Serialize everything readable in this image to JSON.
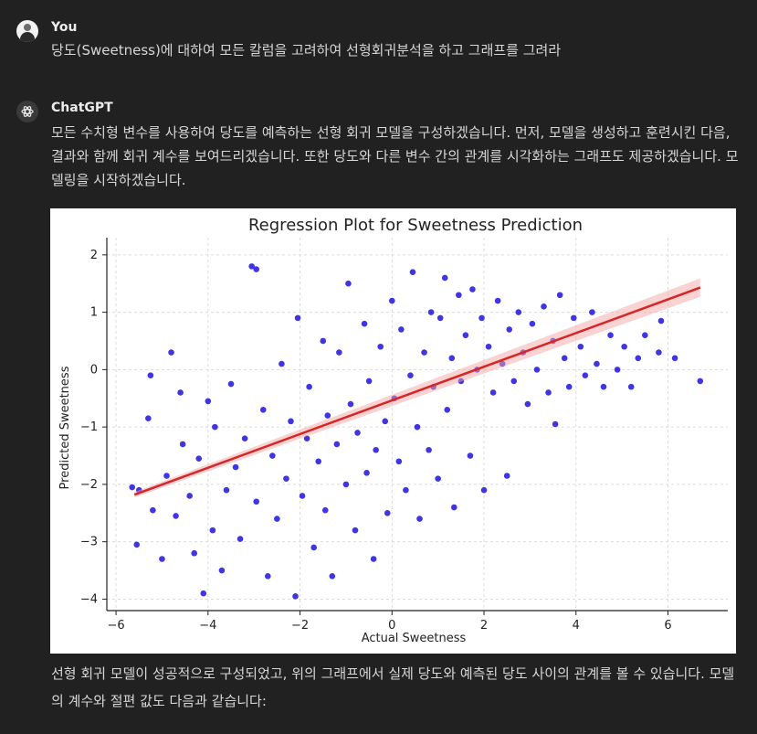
{
  "user": {
    "name": "You",
    "message": "당도(Sweetness)에 대하여 모든 칼럼을 고려하여 선형회귀분석을 하고 그래프를 그려라"
  },
  "assistant": {
    "name": "ChatGPT",
    "message_1": "모든 수치형 변수를 사용하여 당도를 예측하는 선형 회귀 모델을 구성하겠습니다. 먼저, 모델을 생성하고 훈련시킨 다음, 결과와 함께 회귀 계수를 보여드리겠습니다. 또한 당도와 다른 변수 간의 관계를 시각화하는 그래프도 제공하겠습니다. 모델링을 시작하겠습니다.",
    "message_2": "선형 회귀 모델이 성공적으로 구성되었고, 위의 그래프에서 실제 당도와 예측된 당도 사이의 관계를 볼 수 있습니다. 모델의 계수와 절편 값도 다음과 같습니다:"
  },
  "icons": {
    "user_avatar": "user-avatar-icon",
    "assistant_avatar": "openai-logo-icon"
  },
  "chart_data": {
    "type": "scatter",
    "title": "Regression Plot for Sweetness Prediction",
    "xlabel": "Actual Sweetness",
    "ylabel": "Predicted Sweetness",
    "xlim": [
      -6.2,
      7.3
    ],
    "ylim": [
      -4.2,
      2.3
    ],
    "xticks": [
      -6,
      -4,
      -2,
      0,
      2,
      4,
      6
    ],
    "yticks": [
      -4,
      -3,
      -2,
      -1,
      0,
      1,
      2
    ],
    "grid": true,
    "point_color": "#2b1fe0",
    "line_color": "#d62728",
    "regression_line": {
      "x": [
        -5.6,
        6.7
      ],
      "y": [
        -2.18,
        1.43
      ]
    },
    "points": [
      [
        -5.65,
        -2.05
      ],
      [
        -5.55,
        -3.05
      ],
      [
        -5.5,
        -2.1
      ],
      [
        -5.3,
        -0.85
      ],
      [
        -5.25,
        -0.1
      ],
      [
        -5.2,
        -2.45
      ],
      [
        -5.0,
        -3.3
      ],
      [
        -4.9,
        -1.85
      ],
      [
        -4.8,
        0.3
      ],
      [
        -4.7,
        -2.55
      ],
      [
        -4.6,
        -0.4
      ],
      [
        -4.55,
        -1.3
      ],
      [
        -4.4,
        -2.2
      ],
      [
        -4.3,
        -3.2
      ],
      [
        -4.2,
        -1.55
      ],
      [
        -4.1,
        -3.9
      ],
      [
        -4.0,
        -0.55
      ],
      [
        -3.9,
        -2.8
      ],
      [
        -3.85,
        -1.0
      ],
      [
        -3.7,
        -3.5
      ],
      [
        -3.6,
        -2.1
      ],
      [
        -3.5,
        -0.25
      ],
      [
        -3.4,
        -1.7
      ],
      [
        -3.3,
        -2.95
      ],
      [
        -3.2,
        -1.2
      ],
      [
        -3.05,
        1.8
      ],
      [
        -2.95,
        1.75
      ],
      [
        -2.95,
        -2.3
      ],
      [
        -2.8,
        -0.7
      ],
      [
        -2.7,
        -3.6
      ],
      [
        -2.6,
        -1.5
      ],
      [
        -2.5,
        -2.6
      ],
      [
        -2.4,
        0.1
      ],
      [
        -2.3,
        -1.9
      ],
      [
        -2.2,
        -0.9
      ],
      [
        -2.1,
        -3.95
      ],
      [
        -2.05,
        0.9
      ],
      [
        -1.95,
        -2.2
      ],
      [
        -1.85,
        -1.2
      ],
      [
        -1.8,
        -0.3
      ],
      [
        -1.7,
        -3.1
      ],
      [
        -1.6,
        -1.6
      ],
      [
        -1.5,
        0.5
      ],
      [
        -1.45,
        -2.45
      ],
      [
        -1.4,
        -0.8
      ],
      [
        -1.3,
        -3.6
      ],
      [
        -1.2,
        -1.3
      ],
      [
        -1.15,
        0.3
      ],
      [
        -1.0,
        -2.0
      ],
      [
        -0.95,
        1.5
      ],
      [
        -0.9,
        -0.6
      ],
      [
        -0.8,
        -2.8
      ],
      [
        -0.75,
        -1.1
      ],
      [
        -0.6,
        0.8
      ],
      [
        -0.55,
        -1.8
      ],
      [
        -0.5,
        -0.2
      ],
      [
        -0.4,
        -3.3
      ],
      [
        -0.35,
        -1.4
      ],
      [
        -0.25,
        0.4
      ],
      [
        -0.15,
        -0.9
      ],
      [
        -0.1,
        -2.5
      ],
      [
        0.0,
        1.2
      ],
      [
        0.05,
        -0.5
      ],
      [
        0.15,
        -1.6
      ],
      [
        0.2,
        0.7
      ],
      [
        0.3,
        -2.1
      ],
      [
        0.4,
        -0.1
      ],
      [
        0.45,
        1.7
      ],
      [
        0.55,
        -1.0
      ],
      [
        0.6,
        -2.6
      ],
      [
        0.7,
        0.3
      ],
      [
        0.8,
        -1.4
      ],
      [
        0.85,
        1.0
      ],
      [
        0.9,
        -0.3
      ],
      [
        1.0,
        -1.9
      ],
      [
        1.05,
        0.9
      ],
      [
        1.15,
        1.6
      ],
      [
        1.2,
        -0.7
      ],
      [
        1.3,
        0.2
      ],
      [
        1.35,
        -2.4
      ],
      [
        1.45,
        1.3
      ],
      [
        1.5,
        -0.2
      ],
      [
        1.6,
        0.6
      ],
      [
        1.7,
        -1.5
      ],
      [
        1.75,
        1.4
      ],
      [
        1.85,
        0.0
      ],
      [
        1.95,
        0.9
      ],
      [
        2.0,
        -2.1
      ],
      [
        2.1,
        0.4
      ],
      [
        2.2,
        -0.4
      ],
      [
        2.3,
        1.2
      ],
      [
        2.4,
        0.1
      ],
      [
        2.5,
        -1.85
      ],
      [
        2.55,
        0.7
      ],
      [
        2.65,
        -0.2
      ],
      [
        2.75,
        1.0
      ],
      [
        2.85,
        0.3
      ],
      [
        2.95,
        -0.6
      ],
      [
        3.05,
        0.8
      ],
      [
        3.15,
        0.0
      ],
      [
        3.3,
        1.1
      ],
      [
        3.4,
        -0.4
      ],
      [
        3.5,
        0.5
      ],
      [
        3.55,
        -0.95
      ],
      [
        3.65,
        1.3
      ],
      [
        3.75,
        0.2
      ],
      [
        3.85,
        -0.3
      ],
      [
        3.95,
        0.9
      ],
      [
        4.1,
        0.4
      ],
      [
        4.2,
        -0.1
      ],
      [
        4.35,
        1.0
      ],
      [
        4.45,
        0.1
      ],
      [
        4.6,
        -0.3
      ],
      [
        4.75,
        0.6
      ],
      [
        4.9,
        0.0
      ],
      [
        5.05,
        0.4
      ],
      [
        5.2,
        -0.3
      ],
      [
        5.35,
        0.2
      ],
      [
        5.5,
        0.6
      ],
      [
        5.8,
        0.3
      ],
      [
        5.85,
        0.85
      ],
      [
        6.15,
        0.2
      ],
      [
        6.7,
        -0.2
      ]
    ]
  }
}
